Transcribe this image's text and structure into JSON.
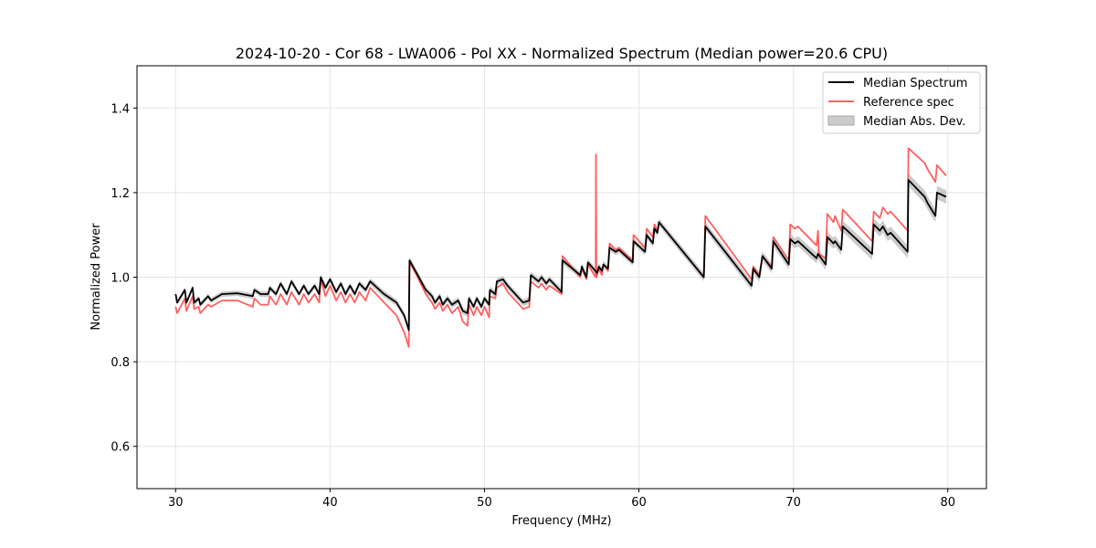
{
  "chart_data": {
    "type": "line",
    "title": "2024-10-20 - Cor 68 - LWA006 - Pol XX - Normalized Spectrum (Median power=20.6 CPU)",
    "xlabel": "Frequency (MHz)",
    "ylabel": "Normalized Power",
    "xlim": [
      27.5,
      82.5
    ],
    "ylim": [
      0.5,
      1.5
    ],
    "xticks": [
      30,
      40,
      50,
      60,
      70,
      80
    ],
    "xtick_labels": [
      "30",
      "40",
      "50",
      "60",
      "70",
      "80"
    ],
    "yticks": [
      0.6,
      0.8,
      1.0,
      1.2,
      1.4
    ],
    "ytick_labels": [
      "0.6",
      "0.8",
      "1.0",
      "1.2",
      "1.4"
    ],
    "grid": true,
    "legend_position": "top-right",
    "legend": [
      "Median Spectrum",
      "Reference spec",
      "Median Abs. Dev."
    ],
    "colors": {
      "median": "#000000",
      "reference": "#ff5f5f",
      "mad": "#b0b0b0"
    },
    "series": [
      {
        "name": "Median Spectrum",
        "points": [
          [
            30,
            0.96
          ],
          [
            30.1,
            0.94
          ],
          [
            30.6,
            0.97
          ],
          [
            30.7,
            0.94
          ],
          [
            31.1,
            0.975
          ],
          [
            31.2,
            0.94
          ],
          [
            31.5,
            0.95
          ],
          [
            31.6,
            0.935
          ],
          [
            32.1,
            0.955
          ],
          [
            32.3,
            0.945
          ],
          [
            33,
            0.96
          ],
          [
            34,
            0.962
          ],
          [
            35,
            0.955
          ],
          [
            35.1,
            0.97
          ],
          [
            35.5,
            0.96
          ],
          [
            36,
            0.96
          ],
          [
            36.1,
            0.975
          ],
          [
            36.5,
            0.96
          ],
          [
            36.8,
            0.985
          ],
          [
            37.2,
            0.96
          ],
          [
            37.5,
            0.99
          ],
          [
            38,
            0.96
          ],
          [
            38.3,
            0.98
          ],
          [
            38.6,
            0.96
          ],
          [
            39,
            0.98
          ],
          [
            39.3,
            0.96
          ],
          [
            39.4,
            1.0
          ],
          [
            39.7,
            0.975
          ],
          [
            40,
            0.995
          ],
          [
            40.4,
            0.965
          ],
          [
            40.7,
            0.985
          ],
          [
            41,
            0.96
          ],
          [
            41.3,
            0.98
          ],
          [
            41.6,
            0.96
          ],
          [
            41.9,
            0.985
          ],
          [
            42.3,
            0.97
          ],
          [
            42.6,
            0.99
          ],
          [
            43.5,
            0.96
          ],
          [
            44.3,
            0.94
          ],
          [
            44.8,
            0.91
          ],
          [
            45.1,
            0.875
          ],
          [
            45.15,
            1.04
          ],
          [
            45.6,
            1.01
          ],
          [
            46.2,
            0.97
          ],
          [
            46.6,
            0.955
          ],
          [
            46.8,
            0.94
          ],
          [
            47.1,
            0.955
          ],
          [
            47.3,
            0.935
          ],
          [
            47.6,
            0.95
          ],
          [
            47.9,
            0.935
          ],
          [
            48.3,
            0.945
          ],
          [
            48.6,
            0.92
          ],
          [
            48.9,
            0.915
          ],
          [
            49.0,
            0.95
          ],
          [
            49.3,
            0.93
          ],
          [
            49.5,
            0.95
          ],
          [
            49.8,
            0.93
          ],
          [
            50,
            0.95
          ],
          [
            50.3,
            0.935
          ],
          [
            50.35,
            0.97
          ],
          [
            50.7,
            0.96
          ],
          [
            50.8,
            0.99
          ],
          [
            51.2,
            0.995
          ],
          [
            51.5,
            0.98
          ],
          [
            52.5,
            0.94
          ],
          [
            52.9,
            0.945
          ],
          [
            53,
            1.005
          ],
          [
            53.5,
            0.99
          ],
          [
            53.7,
            1.0
          ],
          [
            54,
            0.985
          ],
          [
            54.2,
            0.995
          ],
          [
            55,
            0.965
          ],
          [
            55.05,
            1.04
          ],
          [
            56.2,
            1.005
          ],
          [
            56.3,
            1.025
          ],
          [
            56.6,
            1.0
          ],
          [
            56.7,
            1.035
          ],
          [
            57.3,
            1.01
          ],
          [
            57.4,
            1.025
          ],
          [
            57.6,
            1.015
          ],
          [
            57.7,
            1.03
          ],
          [
            58,
            1.02
          ],
          [
            58.1,
            1.07
          ],
          [
            58.5,
            1.06
          ],
          [
            58.7,
            1.065
          ],
          [
            59.6,
            1.035
          ],
          [
            59.65,
            1.085
          ],
          [
            60.4,
            1.06
          ],
          [
            60.5,
            1.1
          ],
          [
            60.9,
            1.08
          ],
          [
            61.0,
            1.115
          ],
          [
            61.2,
            1.105
          ],
          [
            61.3,
            1.13
          ],
          [
            64.2,
            1.0
          ],
          [
            64.3,
            1.12
          ],
          [
            67.3,
            0.98
          ],
          [
            67.4,
            1.02
          ],
          [
            67.8,
            1.0
          ],
          [
            68.0,
            1.05
          ],
          [
            68.6,
            1.02
          ],
          [
            68.7,
            1.085
          ],
          [
            69.7,
            1.03
          ],
          [
            69.8,
            1.09
          ],
          [
            70.1,
            1.08
          ],
          [
            70.3,
            1.085
          ],
          [
            71.5,
            1.045
          ],
          [
            71.6,
            1.055
          ],
          [
            72.1,
            1.03
          ],
          [
            72.2,
            1.095
          ],
          [
            72.6,
            1.08
          ],
          [
            72.7,
            1.085
          ],
          [
            73.1,
            1.065
          ],
          [
            73.2,
            1.12
          ],
          [
            75.1,
            1.055
          ],
          [
            75.2,
            1.125
          ],
          [
            75.6,
            1.11
          ],
          [
            75.8,
            1.12
          ],
          [
            76.1,
            1.1
          ],
          [
            76.3,
            1.105
          ],
          [
            77.4,
            1.06
          ],
          [
            77.45,
            1.23
          ],
          [
            78.5,
            1.19
          ],
          [
            78.7,
            1.175
          ],
          [
            79.2,
            1.145
          ],
          [
            79.3,
            1.2
          ],
          [
            79.9,
            1.19
          ]
        ]
      },
      {
        "name": "Reference spec",
        "points": [
          [
            30,
            0.93
          ],
          [
            30.1,
            0.915
          ],
          [
            30.6,
            0.95
          ],
          [
            30.7,
            0.92
          ],
          [
            31.1,
            0.955
          ],
          [
            31.2,
            0.925
          ],
          [
            31.5,
            0.93
          ],
          [
            31.6,
            0.915
          ],
          [
            32.1,
            0.935
          ],
          [
            32.3,
            0.93
          ],
          [
            33,
            0.945
          ],
          [
            34,
            0.945
          ],
          [
            35,
            0.93
          ],
          [
            35.1,
            0.95
          ],
          [
            35.5,
            0.935
          ],
          [
            36,
            0.935
          ],
          [
            36.1,
            0.955
          ],
          [
            36.5,
            0.935
          ],
          [
            36.8,
            0.96
          ],
          [
            37.2,
            0.935
          ],
          [
            37.5,
            0.965
          ],
          [
            38,
            0.935
          ],
          [
            38.3,
            0.96
          ],
          [
            38.6,
            0.94
          ],
          [
            39,
            0.96
          ],
          [
            39.3,
            0.94
          ],
          [
            39.4,
            0.995
          ],
          [
            39.7,
            0.955
          ],
          [
            40,
            0.98
          ],
          [
            40.4,
            0.945
          ],
          [
            40.7,
            0.965
          ],
          [
            41,
            0.94
          ],
          [
            41.3,
            0.96
          ],
          [
            41.6,
            0.94
          ],
          [
            41.9,
            0.965
          ],
          [
            42.3,
            0.945
          ],
          [
            42.6,
            0.975
          ],
          [
            43.5,
            0.94
          ],
          [
            44.3,
            0.91
          ],
          [
            44.8,
            0.87
          ],
          [
            45.1,
            0.835
          ],
          [
            45.15,
            1.035
          ],
          [
            45.6,
            1.005
          ],
          [
            46.2,
            0.96
          ],
          [
            46.6,
            0.94
          ],
          [
            46.8,
            0.925
          ],
          [
            47.1,
            0.94
          ],
          [
            47.3,
            0.92
          ],
          [
            47.6,
            0.935
          ],
          [
            47.9,
            0.915
          ],
          [
            48.3,
            0.93
          ],
          [
            48.6,
            0.895
          ],
          [
            48.9,
            0.885
          ],
          [
            49.0,
            0.935
          ],
          [
            49.3,
            0.91
          ],
          [
            49.5,
            0.93
          ],
          [
            49.8,
            0.91
          ],
          [
            50,
            0.93
          ],
          [
            50.3,
            0.905
          ],
          [
            50.35,
            0.955
          ],
          [
            50.7,
            0.95
          ],
          [
            50.8,
            0.975
          ],
          [
            51.2,
            0.985
          ],
          [
            51.5,
            0.965
          ],
          [
            52.5,
            0.925
          ],
          [
            52.9,
            0.93
          ],
          [
            53,
            0.99
          ],
          [
            53.5,
            0.975
          ],
          [
            53.7,
            0.985
          ],
          [
            54,
            0.97
          ],
          [
            54.2,
            0.98
          ],
          [
            55,
            0.96
          ],
          [
            55.05,
            1.05
          ],
          [
            56.2,
            1.0
          ],
          [
            56.3,
            1.02
          ],
          [
            56.6,
            0.995
          ],
          [
            56.7,
            1.03
          ],
          [
            57.2,
            1.0
          ],
          [
            57.22,
            1.29
          ],
          [
            57.25,
            1.0
          ],
          [
            57.4,
            1.02
          ],
          [
            57.6,
            1.005
          ],
          [
            57.7,
            1.03
          ],
          [
            58,
            1.015
          ],
          [
            58.1,
            1.08
          ],
          [
            58.5,
            1.065
          ],
          [
            58.7,
            1.07
          ],
          [
            59.6,
            1.04
          ],
          [
            59.65,
            1.1
          ],
          [
            60.4,
            1.07
          ],
          [
            60.5,
            1.115
          ],
          [
            60.9,
            1.095
          ],
          [
            61.0,
            1.125
          ],
          [
            61.2,
            1.11
          ],
          [
            61.3,
            1.13
          ],
          [
            64.2,
            1.0
          ],
          [
            64.3,
            1.145
          ],
          [
            67.3,
            0.995
          ],
          [
            67.4,
            1.025
          ],
          [
            67.8,
            1.005
          ],
          [
            68.0,
            1.05
          ],
          [
            68.6,
            1.025
          ],
          [
            68.7,
            1.095
          ],
          [
            69.7,
            1.04
          ],
          [
            69.8,
            1.125
          ],
          [
            70.1,
            1.115
          ],
          [
            70.3,
            1.12
          ],
          [
            71.5,
            1.075
          ],
          [
            71.6,
            1.11
          ],
          [
            71.65,
            1.055
          ],
          [
            72.1,
            1.045
          ],
          [
            72.2,
            1.15
          ],
          [
            72.6,
            1.13
          ],
          [
            72.7,
            1.145
          ],
          [
            73.1,
            1.11
          ],
          [
            73.2,
            1.16
          ],
          [
            75.1,
            1.085
          ],
          [
            75.2,
            1.155
          ],
          [
            75.6,
            1.14
          ],
          [
            75.8,
            1.165
          ],
          [
            76.1,
            1.15
          ],
          [
            76.3,
            1.155
          ],
          [
            77.4,
            1.11
          ],
          [
            77.45,
            1.305
          ],
          [
            78.5,
            1.27
          ],
          [
            78.7,
            1.255
          ],
          [
            79.2,
            1.225
          ],
          [
            79.3,
            1.265
          ],
          [
            79.9,
            1.24
          ]
        ]
      }
    ],
    "mad_halfwidth": [
      [
        30,
        0.006
      ],
      [
        45,
        0.008
      ],
      [
        60,
        0.008
      ],
      [
        80,
        0.016
      ]
    ]
  }
}
